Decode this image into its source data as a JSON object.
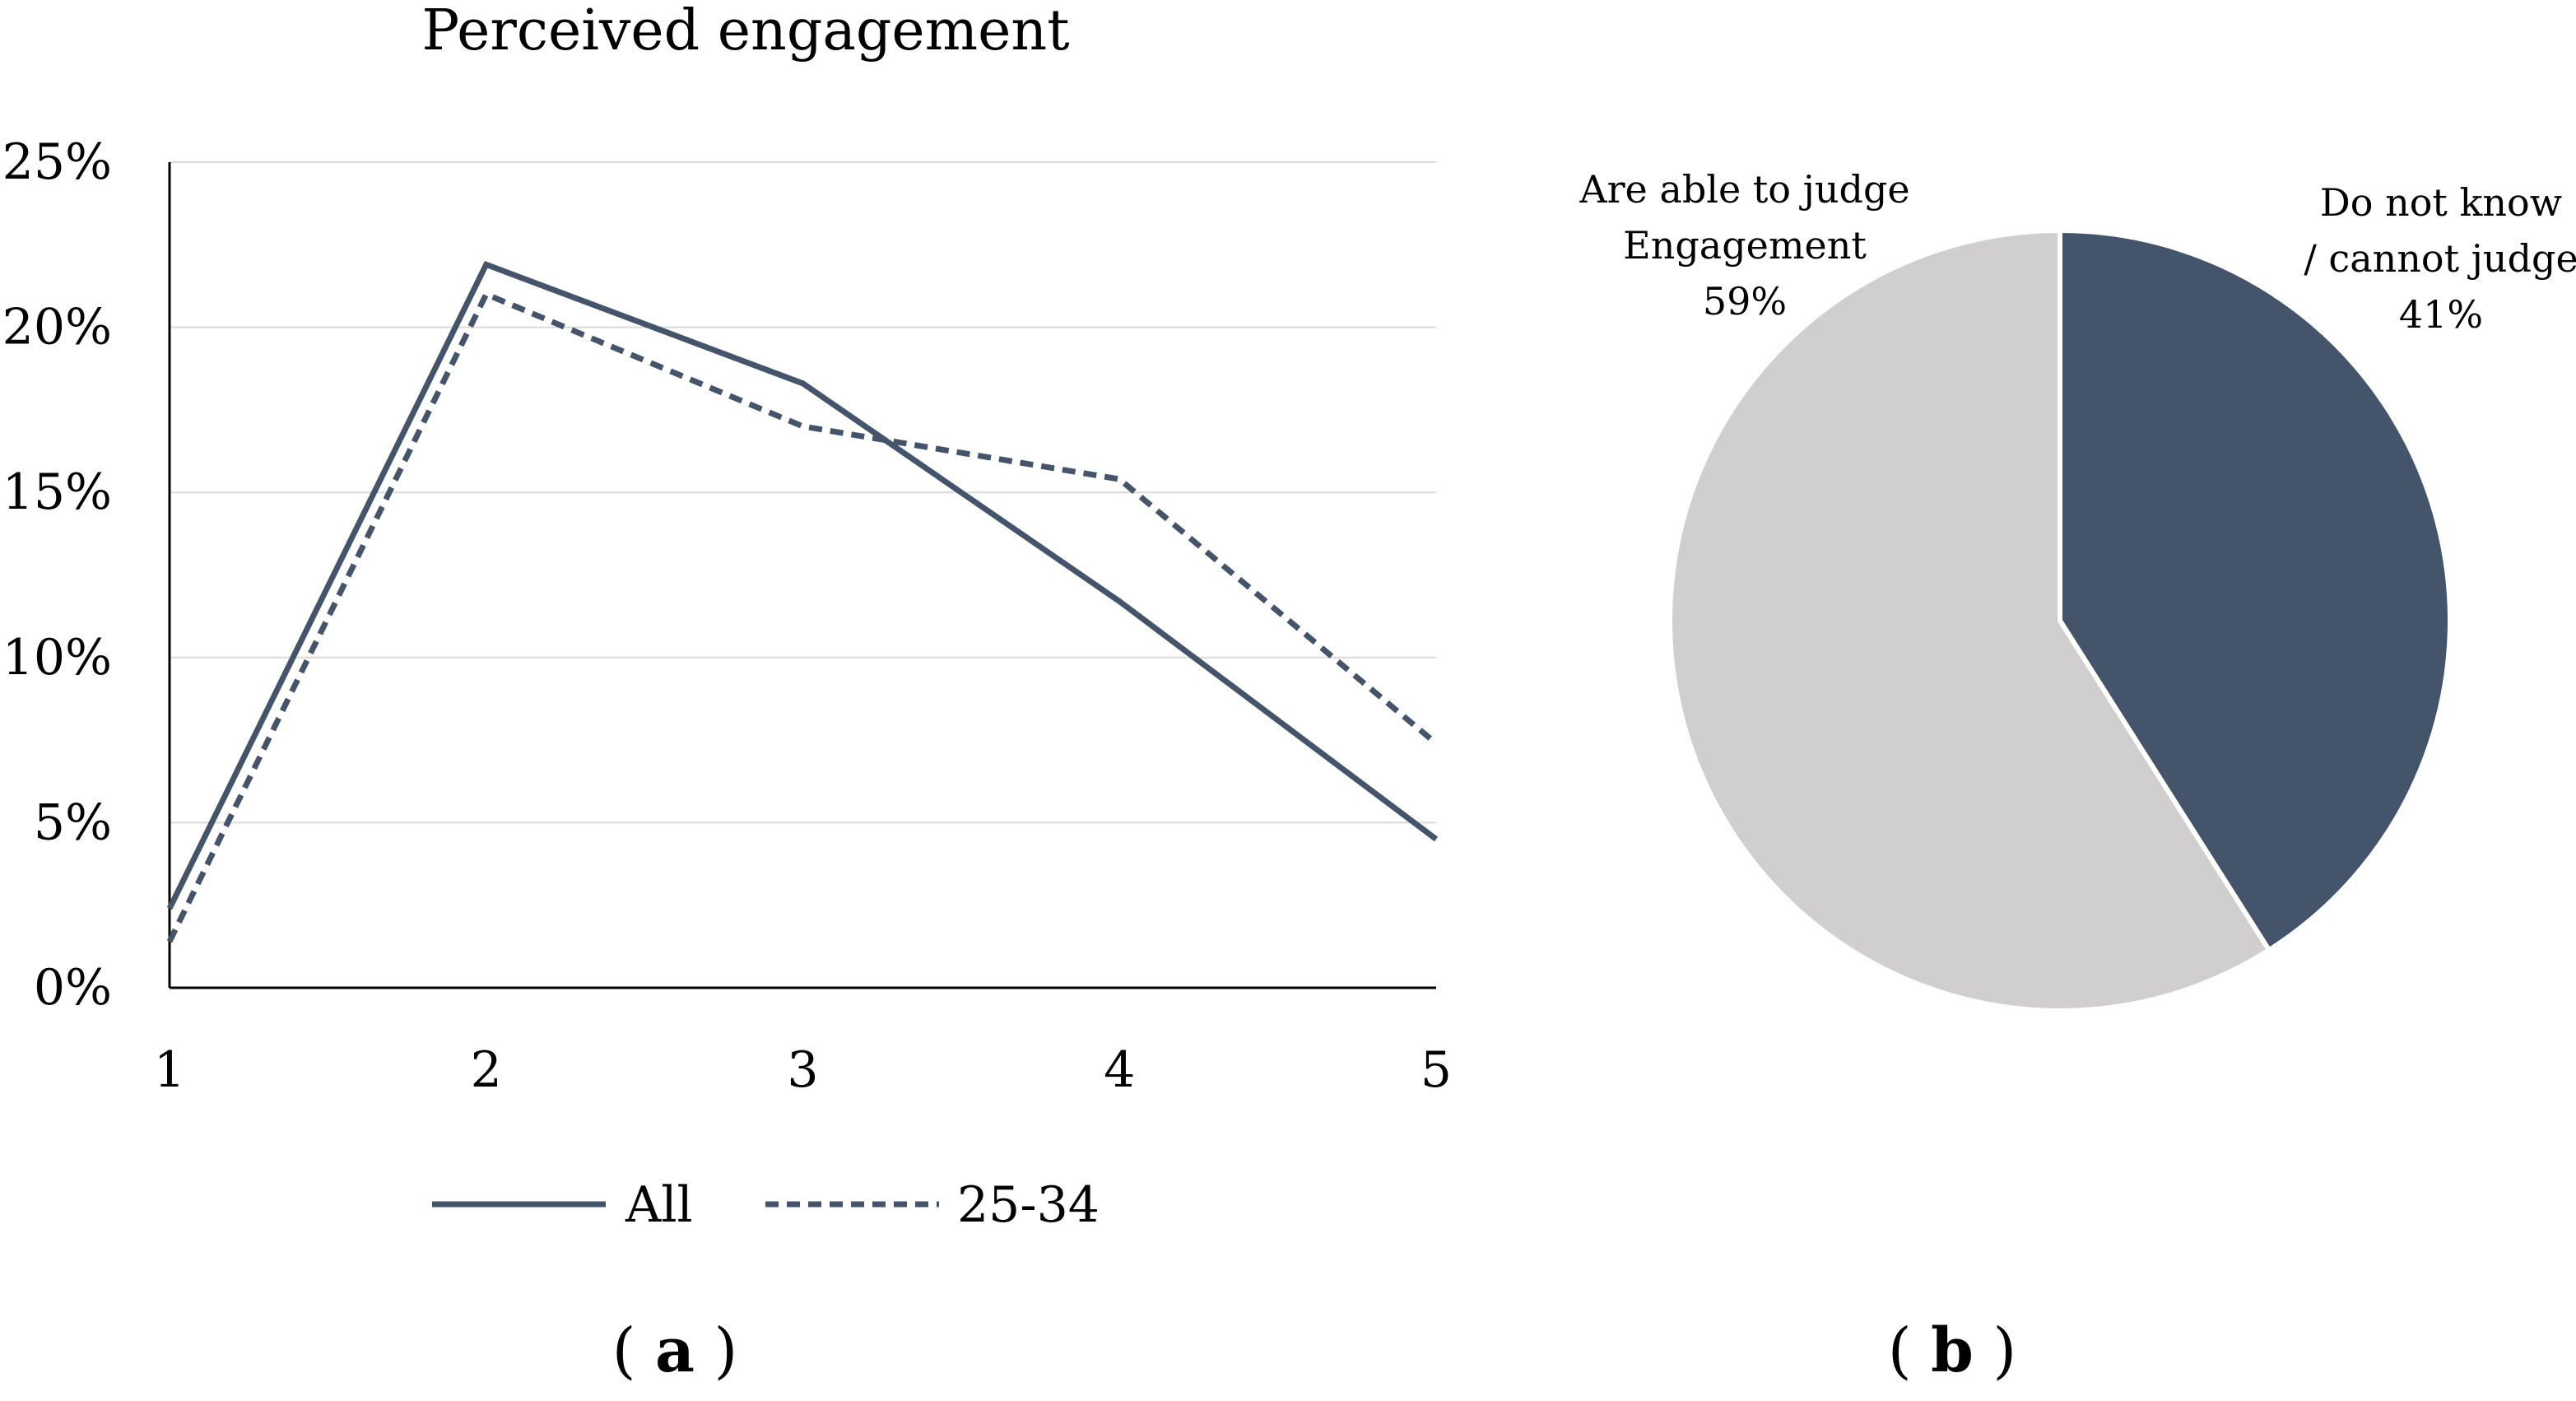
{
  "panels": {
    "a": {
      "open_paren": "(",
      "letter": "a",
      "close_paren": ")"
    },
    "b": {
      "open_paren": "(",
      "letter": "b",
      "close_paren": ")"
    }
  },
  "colors": {
    "line": "#44546a",
    "axis": "#000000",
    "grid": "#d9d9d9",
    "pie_light": "#d0cecf",
    "pie_dark": "#44546a"
  },
  "chart_data": [
    {
      "type": "line",
      "title": "Perceived engagement",
      "x": [
        1,
        2,
        3,
        4,
        5
      ],
      "x_labels": [
        "1",
        "2",
        "3",
        "4",
        "5"
      ],
      "series": [
        {
          "name": "All",
          "style": "solid",
          "values": [
            2.4,
            21.9,
            18.3,
            11.7,
            4.5
          ]
        },
        {
          "name": "25-34",
          "style": "dashed",
          "values": [
            1.4,
            21.0,
            17.0,
            15.4,
            7.4
          ]
        }
      ],
      "y_ticks": [
        0,
        5,
        10,
        15,
        20,
        25
      ],
      "y_tick_labels": [
        "0%",
        "5%",
        "10%",
        "15%",
        "20%",
        "25%"
      ],
      "ylim": [
        0,
        25
      ],
      "xlabel": "",
      "ylabel": "",
      "grid": true,
      "legend_position": "bottom"
    },
    {
      "type": "pie",
      "slices": [
        {
          "name": "Do not know / cannot judge",
          "value": 41,
          "label_lines": [
            "Do not know",
            "/ cannot judge",
            "41%"
          ]
        },
        {
          "name": "Are able to judge Engagement",
          "value": 59,
          "label_lines": [
            "Are able to judge",
            "Engagement",
            "59%"
          ]
        }
      ]
    }
  ]
}
